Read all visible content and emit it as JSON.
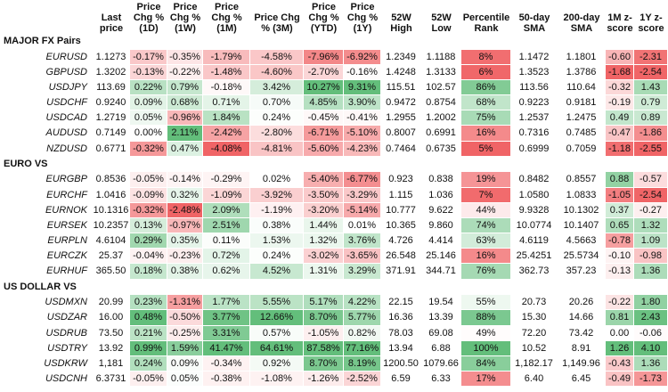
{
  "columns": [
    "Last price",
    "Price Chg % (1D)",
    "Price Chg % (1W)",
    "Price Chg % (1M)",
    "Price Chg % (3M)",
    "Price Chg % (YTD)",
    "Price Chg % (1Y)",
    "52W High",
    "52W Low",
    "Percentile Rank",
    "50-day SMA",
    "200-day SMA",
    "1M z-score",
    "1Y z-score"
  ],
  "groups": [
    {
      "title": "MAJOR FX Pairs",
      "rows": [
        {
          "pair": "EURUSD",
          "cells": [
            "1.1273",
            "-0.17%",
            "-0.35%",
            "-1.79%",
            "-4.58%",
            "-7.96%",
            "-6.92%",
            "1.2349",
            "1.1188",
            "8%",
            "1.1472",
            "1.1801",
            "-0.60",
            "-2.31"
          ]
        },
        {
          "pair": "GBPUSD",
          "cells": [
            "1.3202",
            "-0.13%",
            "-0.22%",
            "-1.48%",
            "-4.60%",
            "-2.70%",
            "-0.16%",
            "1.4248",
            "1.3133",
            "6%",
            "1.3523",
            "1.3786",
            "-1.68",
            "-2.54"
          ]
        },
        {
          "pair": "USDJPY",
          "cells": [
            "113.69",
            "0.22%",
            "0.79%",
            "-0.18%",
            "3.42%",
            "10.27%",
            "9.31%",
            "115.51",
            "102.57",
            "86%",
            "113.56",
            "110.64",
            "-0.32",
            "1.43"
          ]
        },
        {
          "pair": "USDCHF",
          "cells": [
            "0.9240",
            "0.09%",
            "0.68%",
            "0.71%",
            "0.70%",
            "4.85%",
            "3.90%",
            "0.9472",
            "0.8754",
            "68%",
            "0.9223",
            "0.9181",
            "-0.19",
            "0.79"
          ]
        },
        {
          "pair": "USDCAD",
          "cells": [
            "1.2719",
            "0.05%",
            "-0.96%",
            "1.84%",
            "0.24%",
            "-0.45%",
            "-0.41%",
            "1.2955",
            "1.2002",
            "75%",
            "1.2537",
            "1.2475",
            "0.49",
            "0.89"
          ]
        },
        {
          "pair": "AUDUSD",
          "cells": [
            "0.7149",
            "0.00%",
            "2.11%",
            "-2.42%",
            "-2.80%",
            "-6.71%",
            "-5.10%",
            "0.8007",
            "0.6991",
            "16%",
            "0.7316",
            "0.7485",
            "-0.47",
            "-1.86"
          ]
        },
        {
          "pair": "NZDUSD",
          "cells": [
            "0.6771",
            "-0.32%",
            "0.47%",
            "-4.08%",
            "-4.81%",
            "-5.60%",
            "-4.23%",
            "0.7464",
            "0.6735",
            "5%",
            "0.6999",
            "0.7059",
            "-1.18",
            "-2.55"
          ]
        }
      ]
    },
    {
      "title": "EURO VS",
      "rows": [
        {
          "pair": "EURGBP",
          "cells": [
            "0.8536",
            "-0.05%",
            "-0.14%",
            "-0.29%",
            "0.02%",
            "-5.40%",
            "-6.77%",
            "0.923",
            "0.838",
            "19%",
            "0.8482",
            "0.8557",
            "0.88",
            "-0.57"
          ]
        },
        {
          "pair": "EURCHF",
          "cells": [
            "1.0416",
            "-0.09%",
            "0.32%",
            "-1.09%",
            "-3.92%",
            "-3.50%",
            "-3.29%",
            "1.115",
            "1.036",
            "7%",
            "1.0580",
            "1.0833",
            "-1.05",
            "-2.54"
          ]
        },
        {
          "pair": "EURNOK",
          "cells": [
            "10.1316",
            "-0.32%",
            "-2.48%",
            "2.09%",
            "-1.19%",
            "-3.20%",
            "-5.14%",
            "10.777",
            "9.622",
            "44%",
            "9.9328",
            "10.1302",
            "0.37",
            "-0.27"
          ]
        },
        {
          "pair": "EURSEK",
          "cells": [
            "10.2357",
            "0.13%",
            "-0.97%",
            "2.51%",
            "0.38%",
            "1.44%",
            "0.01%",
            "10.365",
            "9.860",
            "74%",
            "10.0774",
            "10.1407",
            "0.65",
            "1.32"
          ]
        },
        {
          "pair": "EURPLN",
          "cells": [
            "4.6104",
            "0.29%",
            "0.35%",
            "0.11%",
            "1.53%",
            "1.32%",
            "3.76%",
            "4.726",
            "4.414",
            "63%",
            "4.6119",
            "4.5663",
            "-0.78",
            "1.09"
          ]
        },
        {
          "pair": "EURCZK",
          "cells": [
            "25.37",
            "-0.04%",
            "-0.23%",
            "0.72%",
            "0.24%",
            "-3.02%",
            "-3.65%",
            "26.548",
            "25.146",
            "16%",
            "25.4251",
            "25.5734",
            "-0.10",
            "-0.98"
          ]
        },
        {
          "pair": "EURHUF",
          "cells": [
            "365.50",
            "0.18%",
            "0.38%",
            "0.62%",
            "4.52%",
            "1.31%",
            "3.29%",
            "371.91",
            "344.71",
            "76%",
            "362.73",
            "357.23",
            "-0.13",
            "1.36"
          ]
        }
      ]
    },
    {
      "title": "US DOLLAR VS",
      "rows": [
        {
          "pair": "USDMXN",
          "cells": [
            "20.99",
            "0.23%",
            "-1.31%",
            "1.77%",
            "5.55%",
            "5.17%",
            "4.22%",
            "22.15",
            "19.54",
            "55%",
            "20.73",
            "20.26",
            "-0.22",
            "1.80"
          ]
        },
        {
          "pair": "USDZAR",
          "cells": [
            "16.00",
            "0.48%",
            "-0.50%",
            "3.77%",
            "12.66%",
            "8.70%",
            "5.77%",
            "16.36",
            "13.39",
            "88%",
            "15.30",
            "14.66",
            "0.81",
            "2.43"
          ]
        },
        {
          "pair": "USDRUB",
          "cells": [
            "73.50",
            "0.21%",
            "-0.25%",
            "3.31%",
            "0.57%",
            "-1.05%",
            "0.82%",
            "78.03",
            "69.08",
            "49%",
            "72.20",
            "73.42",
            "0.00",
            "-0.06"
          ]
        },
        {
          "pair": "USDTRY",
          "cells": [
            "13.92",
            "0.99%",
            "1.59%",
            "41.47%",
            "64.61%",
            "87.58%",
            "77.16%",
            "13.94",
            "6.88",
            "100%",
            "10.52",
            "8.91",
            "1.26",
            "4.10"
          ]
        },
        {
          "pair": "USDKRW",
          "cells": [
            "1,181",
            "0.24%",
            "0.09%",
            "-0.34%",
            "0.92%",
            "8.70%",
            "8.19%",
            "1200.50",
            "1079.66",
            "84%",
            "1,182.17",
            "1,149.96",
            "-0.43",
            "1.36"
          ]
        },
        {
          "pair": "USDCNH",
          "cells": [
            "6.3731",
            "-0.05%",
            "0.05%",
            "-0.38%",
            "-1.08%",
            "-1.26%",
            "-2.52%",
            "6.59",
            "6.33",
            "17%",
            "6.40",
            "6.45",
            "-0.49",
            "-1.73"
          ]
        }
      ]
    }
  ]
}
